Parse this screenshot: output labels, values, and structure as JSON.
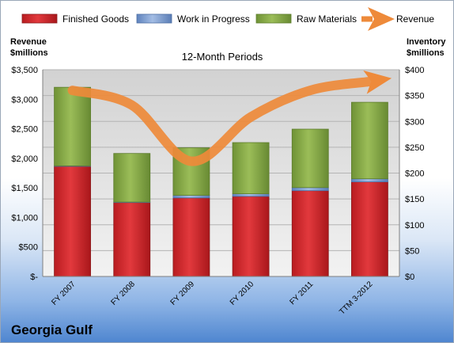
{
  "company_name": "Georgia Gulf",
  "chart_data": {
    "type": "bar",
    "stacked": true,
    "title": "12-Month Periods",
    "categories": [
      "FY 2007",
      "FY 2008",
      "FY 2009",
      "FY 2010",
      "FY 2011",
      "TTM 3-2012"
    ],
    "left_axis": {
      "label_line1": "Revenue",
      "label_line2": "$millions",
      "range": [
        0,
        3500
      ],
      "ticks": [
        "$-",
        "$500",
        "$1,000",
        "$1,500",
        "$2,000",
        "$2,500",
        "$3,000",
        "$3,500"
      ]
    },
    "right_axis": {
      "label_line1": "Inventory",
      "label_line2": "$millions",
      "range": [
        0,
        400
      ],
      "ticks": [
        "$0",
        "$50",
        "$100",
        "$150",
        "$200",
        "$250",
        "$300",
        "$350",
        "$400"
      ]
    },
    "series": [
      {
        "name": "Finished Goods",
        "axis": "right",
        "kind": "bar",
        "color": "#d9262b",
        "values": [
          213,
          143,
          152,
          155,
          166,
          183
        ]
      },
      {
        "name": "Work in Progress",
        "axis": "right",
        "kind": "bar",
        "color": "#7d9fd3",
        "values": [
          1,
          1,
          5,
          5,
          6,
          6
        ]
      },
      {
        "name": "Raw Materials",
        "axis": "right",
        "kind": "bar",
        "color": "#8cb04a",
        "values": [
          152,
          94,
          92,
          99,
          113,
          148
        ]
      },
      {
        "name": "Revenue",
        "axis": "left",
        "kind": "line",
        "color": "#ee8a3a",
        "values": [
          3150,
          2900,
          1950,
          2700,
          3150,
          3300
        ]
      }
    ],
    "grid": true,
    "legend_position": "top"
  }
}
